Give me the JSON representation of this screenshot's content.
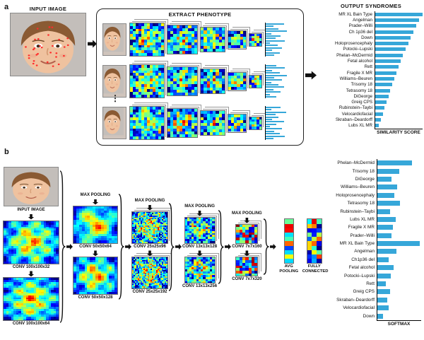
{
  "panel_a": {
    "label": "a",
    "input_image_label": "INPUT IMAGE",
    "box_title": "EXTRACT PHENOTYPE",
    "ellipsis": "⋮"
  },
  "panel_b": {
    "label": "b",
    "input_image_label": "INPUT IMAGE",
    "max_pooling_label": "MAX POOLING",
    "avg_pooling_label": "AVG POOLING",
    "fully_connected_label": "FULLY CONNECTED",
    "columns": [
      {
        "conv_labels": [
          "CONV 100x100x32",
          "CONV 100x100x64"
        ],
        "has_max_pooling": false
      },
      {
        "conv_labels": [
          "CONV 50x50x64",
          "CONV 50x50x128"
        ],
        "has_max_pooling": true
      },
      {
        "conv_labels": [
          "CONV 25x25x96",
          "CONV 25x25x192"
        ],
        "has_max_pooling": true
      },
      {
        "conv_labels": [
          "CONV 13x13x128",
          "CONV 13x13x256"
        ],
        "has_max_pooling": true
      },
      {
        "conv_labels": [
          "CONV 7x7x160",
          "CONV 7x7x320"
        ],
        "has_max_pooling": true
      }
    ]
  },
  "chart_data": [
    {
      "id": "output_syndromes",
      "type": "bar",
      "orientation": "horizontal",
      "title": "OUTPUT SYNDROMES",
      "xlabel": "SIMILARITY SCORE",
      "xlim": [
        0,
        1
      ],
      "legend": false,
      "categories": [
        "MR XL Bain Type",
        "Angelman",
        "Prader–Willi",
        "Ch 1p36 del",
        "Down",
        "Holoprosencephaly",
        "Potocki–Lupski",
        "Phelan–McDermid",
        "Fetal alcohol",
        "Rett",
        "Fragile X MR",
        "Williams–Beuren",
        "Trisomy 18",
        "Tetrasomy 18",
        "DiGeorge",
        "Greig CPS",
        "Rubinstein–Taybi",
        "Velocardiofacial",
        "Skraban–Deardorff",
        "Lubs XL MR"
      ],
      "values": [
        1.0,
        0.93,
        0.87,
        0.81,
        0.75,
        0.7,
        0.64,
        0.59,
        0.54,
        0.5,
        0.45,
        0.41,
        0.37,
        0.33,
        0.29,
        0.25,
        0.21,
        0.17,
        0.13,
        0.09
      ]
    },
    {
      "id": "softmax",
      "type": "bar",
      "orientation": "horizontal",
      "title": "",
      "xlabel": "SOFTMAX",
      "xlim": [
        0,
        1
      ],
      "legend": false,
      "categories": [
        "Phelan–McDermid",
        "Trisomy 18",
        "DiGeorge",
        "Williams–Beuren",
        "Holoprosencephaly",
        "Tetrasomy 18",
        "Rubinstein–Taybi",
        "Lubs XL MR",
        "Fragile X MR",
        "Prader–Willi",
        "MR XL Bain Type",
        "Angelman",
        "Ch1p36 del",
        "Fetal alcohol",
        "Potocki–Lupski",
        "Rett",
        "Greig CPS",
        "Skraban–Deardorff",
        "Velocardiofacial",
        "Down"
      ],
      "values": [
        0.8,
        0.5,
        0.33,
        0.46,
        0.4,
        0.53,
        0.3,
        0.43,
        0.37,
        0.33,
        0.97,
        0.45,
        0.27,
        0.38,
        0.32,
        0.21,
        0.3,
        0.24,
        0.27,
        0.15
      ]
    },
    {
      "id": "phenotype_row_bars",
      "type": "bar",
      "orientation": "horizontal",
      "rows": [
        [
          0.85,
          0.35,
          0.6,
          1.0,
          0.25,
          0.7,
          0.45,
          0.9,
          0.2,
          0.55,
          0.75,
          0.3,
          0.65,
          0.4
        ],
        [
          0.5,
          0.9,
          0.3,
          0.65,
          1.0,
          0.4,
          0.75,
          0.25,
          0.6,
          0.85,
          0.35,
          0.7,
          0.2,
          0.5
        ],
        [
          0.7,
          0.25,
          0.95,
          0.45,
          0.6,
          0.3,
          0.85,
          0.5,
          0.2,
          0.75,
          0.4,
          0.65,
          0.9,
          0.35
        ]
      ]
    }
  ],
  "colors": {
    "bar": "#36a7d9"
  }
}
